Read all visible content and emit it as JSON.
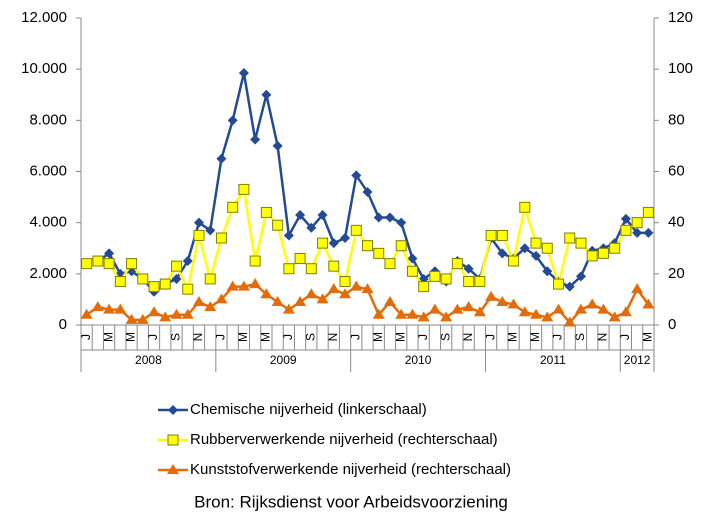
{
  "chart_data": {
    "type": "line",
    "categories": [
      "J",
      null,
      "M",
      null,
      "M",
      null,
      "J",
      null,
      "S",
      null,
      "N",
      null,
      "J",
      null,
      "M",
      null,
      "M",
      null,
      "J",
      null,
      "S",
      null,
      "N",
      null,
      "J",
      null,
      "M",
      null,
      "M",
      null,
      "J",
      null,
      "S",
      null,
      "N",
      null,
      "J",
      null,
      "M",
      null,
      "M",
      null,
      "J",
      null,
      "S",
      null,
      "N",
      null,
      "J",
      null,
      "M"
    ],
    "year_labels": [
      "2008",
      "2009",
      "2010",
      "2011",
      "2012"
    ],
    "ylim": [
      0,
      12000
    ],
    "yticks": [
      0,
      {
        "value": 2000,
        "label": "2.000"
      },
      {
        "value": 4000,
        "label": "4.000"
      },
      {
        "value": 6000,
        "label": "6.000"
      },
      {
        "value": 8000,
        "label": "8.000"
      },
      {
        "value": 10000,
        "label": "10.000"
      },
      {
        "value": 12000,
        "label": "12.000"
      }
    ],
    "y2lim": [
      0,
      120
    ],
    "y2ticks": [
      0,
      20,
      40,
      60,
      80,
      100,
      120
    ],
    "series": [
      {
        "name": "Chemische nijverheid (linkerschaal)",
        "color": "#244a94",
        "marker": "diamond",
        "values": [
          2400,
          2500,
          2800,
          2000,
          2100,
          1800,
          1300,
          1600,
          1800,
          2500,
          4000,
          3700,
          6500,
          8000,
          9850,
          7250,
          9000,
          7000,
          3500,
          4300,
          3800,
          4300,
          3200,
          3400,
          5850,
          5200,
          4200,
          4200,
          4000,
          2600,
          1800,
          2100,
          1700,
          2500,
          2200,
          1800,
          3400,
          2800,
          2600,
          3000,
          2700,
          2100,
          1700,
          1500,
          1900,
          2900,
          3000,
          3200,
          4150,
          3600,
          3600
        ]
      },
      {
        "name": "Rubberverwerkende nijverheid (rechterschaal)",
        "color": "#ffff00",
        "marker": "square",
        "axis": "y2",
        "values": [
          24,
          25,
          24,
          17,
          24,
          18,
          15,
          16,
          23,
          14,
          35,
          18,
          34,
          46,
          53,
          25,
          44,
          39,
          22,
          26,
          22,
          32,
          23,
          17,
          37,
          31,
          28,
          24,
          31,
          21,
          15,
          19,
          18,
          24,
          17,
          17,
          35,
          35,
          25,
          46,
          32,
          30,
          16,
          34,
          32,
          27,
          28,
          30,
          37,
          40,
          44
        ]
      },
      {
        "name": "Kunststofverwerkende nijverheid (rechterschaal)",
        "color": "#e36c0a",
        "marker": "triangle",
        "axis": "y2",
        "values": [
          4,
          7,
          6,
          6,
          2,
          2,
          5,
          3,
          4,
          4,
          9,
          7,
          10,
          15,
          15,
          16,
          12,
          9,
          6,
          9,
          12,
          10,
          14,
          12,
          15,
          14,
          4,
          9,
          4,
          4,
          3,
          6,
          3,
          6,
          7,
          5,
          11,
          9,
          8,
          5,
          4,
          3,
          6,
          1,
          6,
          8,
          6,
          3,
          5,
          14,
          8
        ]
      }
    ],
    "source": "Bron: Rijksdienst voor Arbeidsvoorziening"
  }
}
